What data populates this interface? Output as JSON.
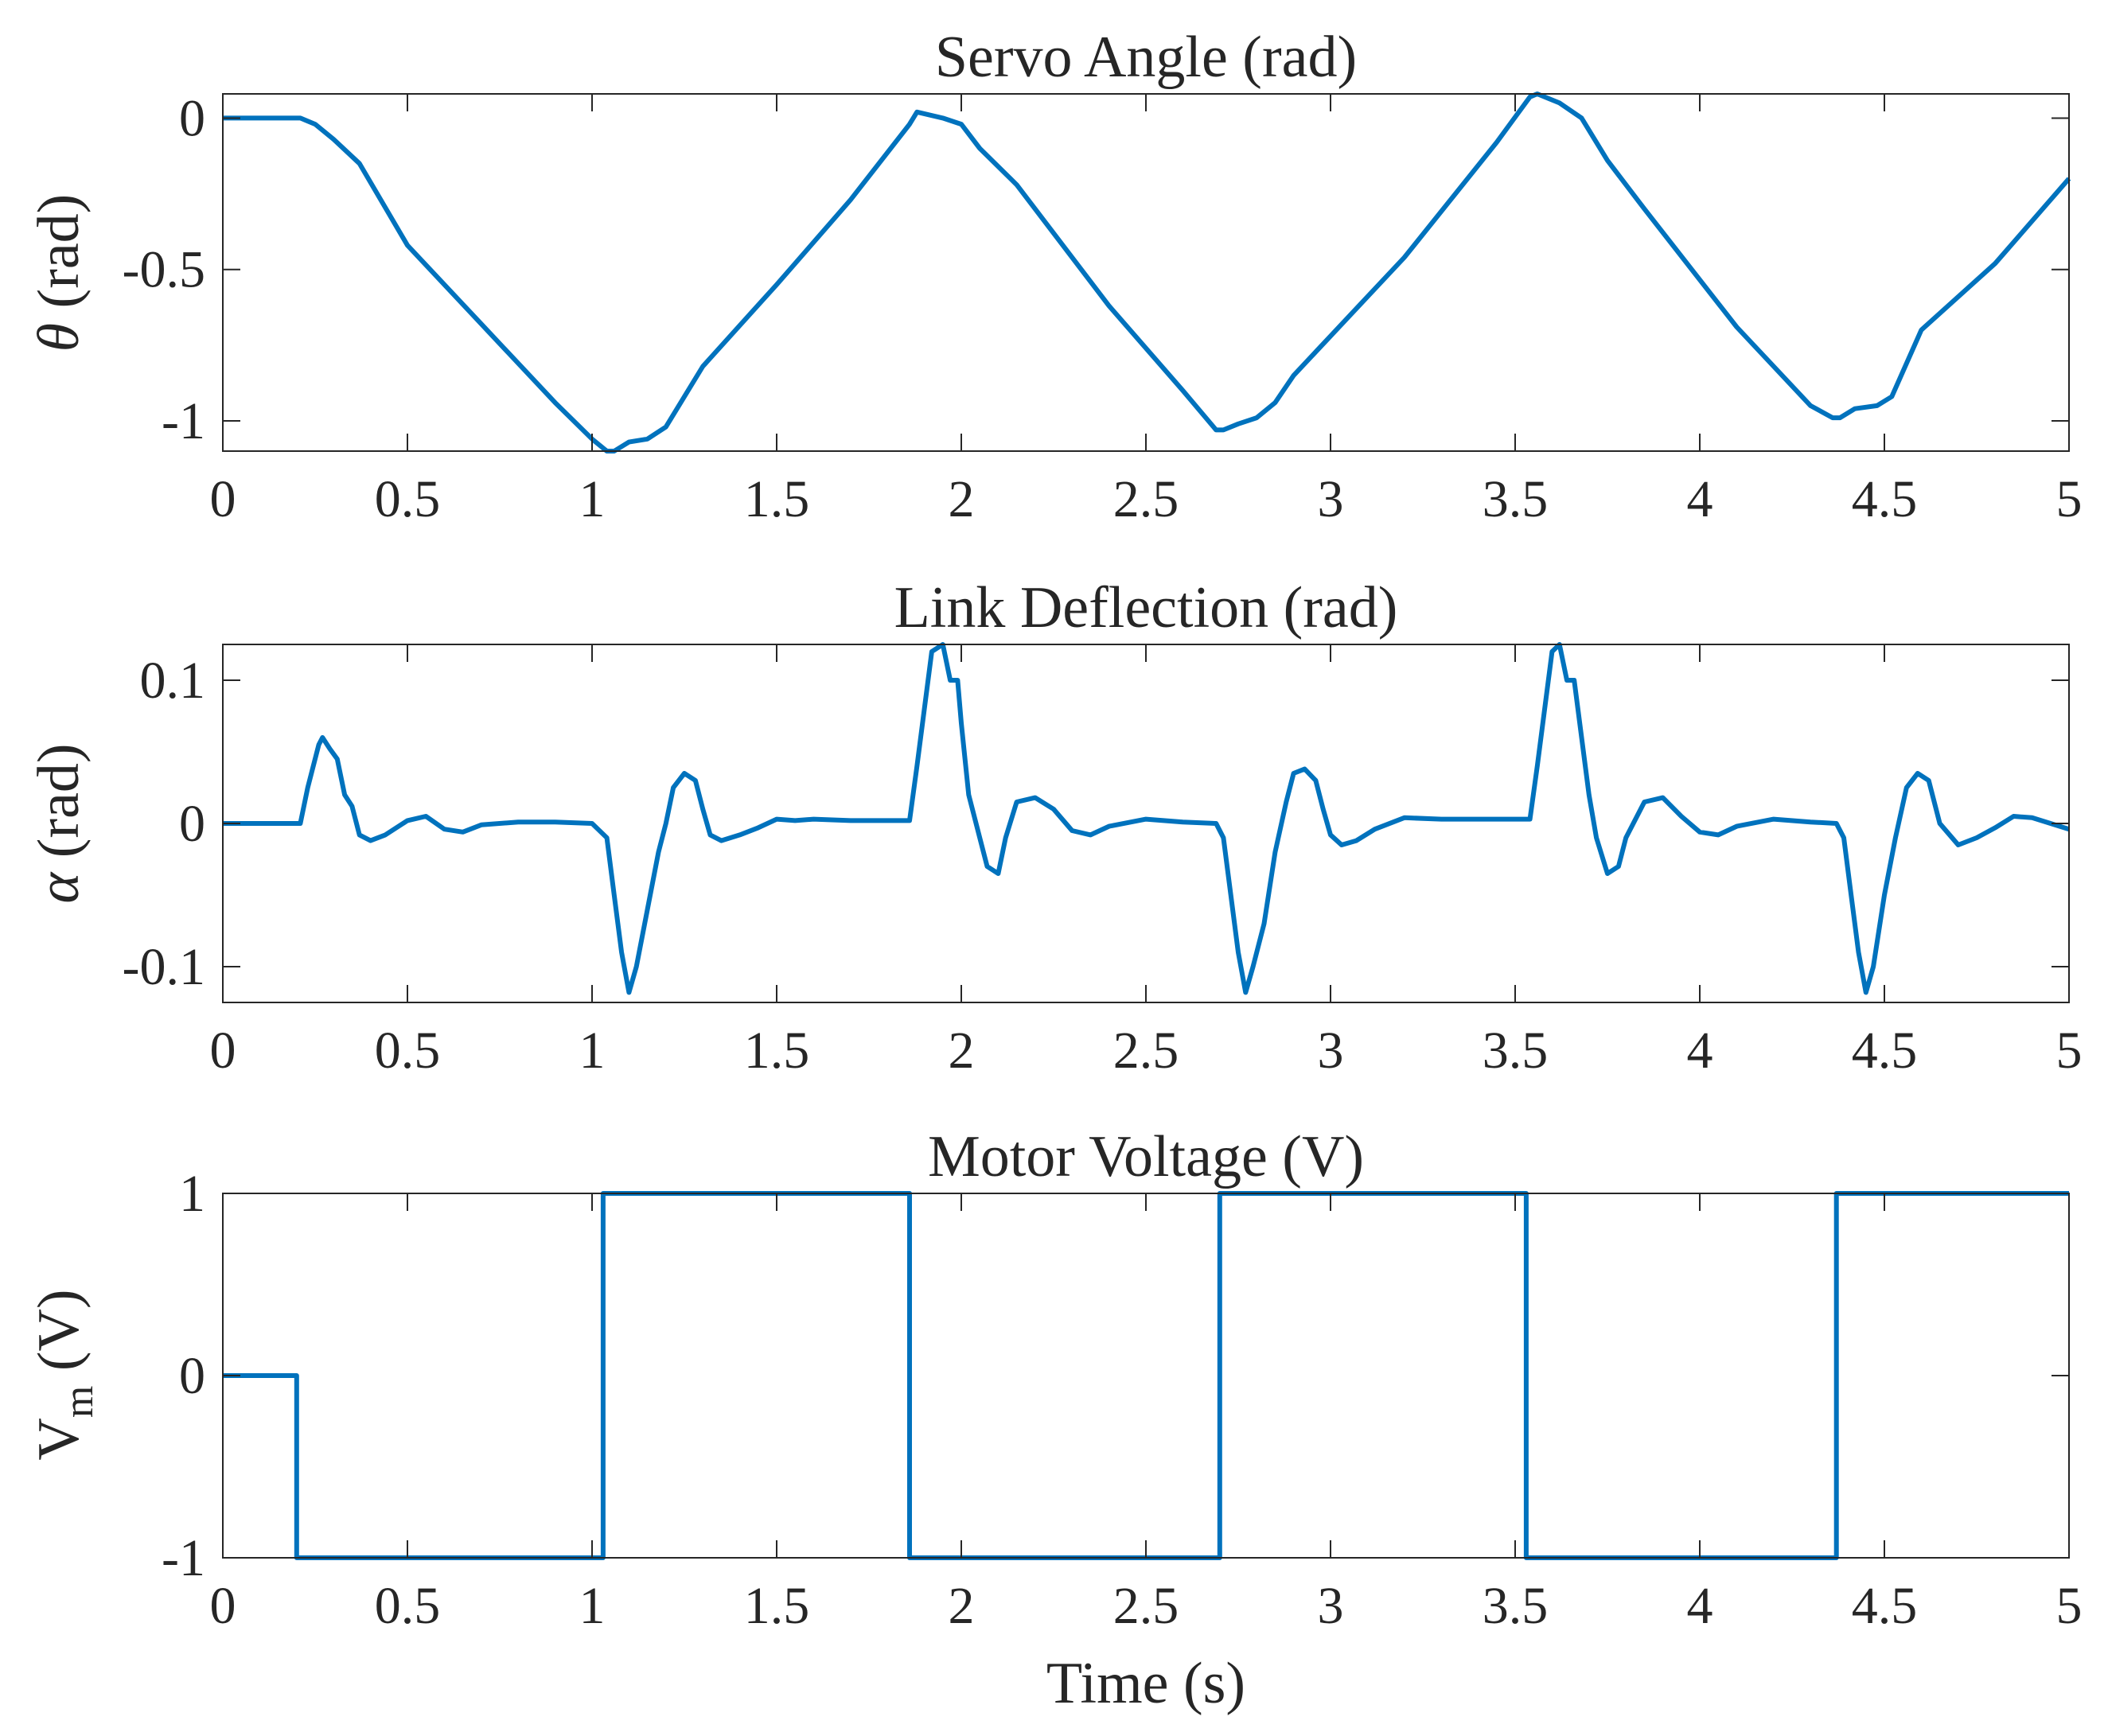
{
  "figure": {
    "line_color": "#0072BD",
    "axes_color": "#262626",
    "xlabel": "Time (s)"
  },
  "chart_data": [
    {
      "type": "line",
      "title": "Servo Angle (rad)",
      "ylabel_symbol": "θ",
      "ylabel_unit": " (rad)",
      "xlim": [
        0,
        5
      ],
      "ylim": [
        -1.1,
        0.08
      ],
      "xticks": [
        0,
        0.5,
        1,
        1.5,
        2,
        2.5,
        3,
        3.5,
        4,
        4.5,
        5
      ],
      "xtick_labels": [
        "0",
        "0.5",
        "1",
        "1.5",
        "2",
        "2.5",
        "3",
        "3.5",
        "4",
        "4.5",
        "5"
      ],
      "yticks": [
        -1,
        -0.5,
        0
      ],
      "ytick_labels": [
        "-1",
        "-0.5",
        "0"
      ],
      "series": [
        {
          "name": "theta",
          "x": [
            0,
            0.21,
            0.25,
            0.3,
            0.37,
            0.5,
            0.7,
            0.9,
            1.0,
            1.04,
            1.06,
            1.1,
            1.15,
            1.2,
            1.3,
            1.5,
            1.7,
            1.86,
            1.88,
            1.95,
            2.0,
            2.05,
            2.15,
            2.4,
            2.6,
            2.69,
            2.71,
            2.75,
            2.8,
            2.85,
            2.9,
            3.0,
            3.2,
            3.45,
            3.54,
            3.56,
            3.62,
            3.68,
            3.75,
            3.85,
            4.1,
            4.3,
            4.36,
            4.38,
            4.42,
            4.48,
            4.52,
            4.6,
            4.8,
            5.0
          ],
          "values": [
            0,
            0,
            -0.02,
            -0.07,
            -0.15,
            -0.42,
            -0.68,
            -0.94,
            -1.06,
            -1.1,
            -1.1,
            -1.07,
            -1.06,
            -1.02,
            -0.82,
            -0.55,
            -0.27,
            -0.02,
            0.02,
            0.0,
            -0.02,
            -0.1,
            -0.22,
            -0.62,
            -0.9,
            -1.03,
            -1.03,
            -1.01,
            -0.99,
            -0.94,
            -0.85,
            -0.72,
            -0.46,
            -0.08,
            0.07,
            0.08,
            0.05,
            0.0,
            -0.14,
            -0.3,
            -0.69,
            -0.95,
            -0.99,
            -0.99,
            -0.96,
            -0.95,
            -0.92,
            -0.7,
            -0.48,
            -0.2
          ]
        }
      ]
    },
    {
      "type": "line",
      "title": "Link Deflection (rad)",
      "ylabel_symbol": "α",
      "ylabel_unit": " (rad)",
      "xlim": [
        0,
        5
      ],
      "ylim": [
        -0.125,
        0.125
      ],
      "xticks": [
        0,
        0.5,
        1,
        1.5,
        2,
        2.5,
        3,
        3.5,
        4,
        4.5,
        5
      ],
      "xtick_labels": [
        "0",
        "0.5",
        "1",
        "1.5",
        "2",
        "2.5",
        "3",
        "3.5",
        "4",
        "4.5",
        "5"
      ],
      "yticks": [
        -0.1,
        0,
        0.1
      ],
      "ytick_labels": [
        "-0.1",
        "0",
        "0.1"
      ],
      "series": [
        {
          "name": "alpha",
          "x": [
            0,
            0.21,
            0.23,
            0.26,
            0.27,
            0.29,
            0.31,
            0.33,
            0.35,
            0.37,
            0.4,
            0.44,
            0.5,
            0.55,
            0.6,
            0.65,
            0.7,
            0.8,
            0.9,
            1.0,
            1.04,
            1.06,
            1.08,
            1.1,
            1.12,
            1.15,
            1.18,
            1.2,
            1.22,
            1.25,
            1.28,
            1.3,
            1.32,
            1.35,
            1.4,
            1.45,
            1.5,
            1.55,
            1.6,
            1.7,
            1.8,
            1.86,
            1.88,
            1.9,
            1.92,
            1.95,
            1.97,
            1.99,
            2.0,
            2.02,
            2.05,
            2.07,
            2.1,
            2.12,
            2.15,
            2.2,
            2.25,
            2.3,
            2.35,
            2.4,
            2.5,
            2.6,
            2.69,
            2.71,
            2.73,
            2.75,
            2.77,
            2.79,
            2.82,
            2.85,
            2.88,
            2.9,
            2.93,
            2.96,
            2.98,
            3.0,
            3.03,
            3.07,
            3.12,
            3.2,
            3.3,
            3.4,
            3.54,
            3.56,
            3.58,
            3.6,
            3.62,
            3.64,
            3.66,
            3.68,
            3.7,
            3.72,
            3.75,
            3.78,
            3.8,
            3.85,
            3.9,
            3.95,
            4.0,
            4.05,
            4.1,
            4.2,
            4.3,
            4.37,
            4.39,
            4.41,
            4.43,
            4.45,
            4.47,
            4.5,
            4.53,
            4.56,
            4.59,
            4.62,
            4.65,
            4.7,
            4.75,
            4.8,
            4.85,
            4.9,
            5.0
          ],
          "values": [
            0,
            0,
            0.025,
            0.055,
            0.06,
            0.052,
            0.045,
            0.02,
            0.012,
            -0.008,
            -0.012,
            -0.008,
            0.002,
            0.005,
            -0.004,
            -0.006,
            -0.001,
            0.001,
            0.001,
            0.0,
            -0.01,
            -0.05,
            -0.09,
            -0.118,
            -0.1,
            -0.06,
            -0.02,
            0.0,
            0.025,
            0.035,
            0.03,
            0.01,
            -0.008,
            -0.012,
            -0.008,
            -0.003,
            0.003,
            0.002,
            0.003,
            0.002,
            0.002,
            0.002,
            0.04,
            0.08,
            0.12,
            0.125,
            0.1,
            0.1,
            0.07,
            0.02,
            -0.01,
            -0.03,
            -0.035,
            -0.01,
            0.015,
            0.018,
            0.01,
            -0.005,
            -0.008,
            -0.002,
            0.003,
            0.001,
            0.0,
            -0.01,
            -0.05,
            -0.09,
            -0.118,
            -0.1,
            -0.07,
            -0.02,
            0.015,
            0.035,
            0.038,
            0.03,
            0.01,
            -0.008,
            -0.015,
            -0.012,
            -0.004,
            0.004,
            0.003,
            0.003,
            0.003,
            0.04,
            0.08,
            0.12,
            0.125,
            0.1,
            0.1,
            0.06,
            0.02,
            -0.01,
            -0.035,
            -0.03,
            -0.01,
            0.015,
            0.018,
            0.005,
            -0.006,
            -0.008,
            -0.002,
            0.003,
            0.001,
            0.0,
            -0.01,
            -0.05,
            -0.09,
            -0.118,
            -0.1,
            -0.05,
            -0.01,
            0.025,
            0.035,
            0.03,
            0.0,
            -0.015,
            -0.01,
            -0.003,
            0.005,
            0.004,
            -0.004
          ]
        }
      ]
    },
    {
      "type": "line",
      "title": "Motor Voltage (V)",
      "ylabel_main": "V",
      "ylabel_sub": "m",
      "ylabel_unit": " (V)",
      "xlim": [
        0,
        5
      ],
      "ylim": [
        -1,
        1
      ],
      "xticks": [
        0,
        0.5,
        1,
        1.5,
        2,
        2.5,
        3,
        3.5,
        4,
        4.5,
        5
      ],
      "xtick_labels": [
        "0",
        "0.5",
        "1",
        "1.5",
        "2",
        "2.5",
        "3",
        "3.5",
        "4",
        "4.5",
        "5"
      ],
      "yticks": [
        -1,
        0,
        1
      ],
      "ytick_labels": [
        "-1",
        "0",
        "1"
      ],
      "series": [
        {
          "name": "Vm",
          "x": [
            0,
            0.2,
            0.2,
            1.03,
            1.03,
            1.86,
            1.86,
            2.7,
            2.7,
            3.53,
            3.53,
            4.37,
            4.37,
            5.0
          ],
          "values": [
            0,
            0,
            -1,
            -1,
            1,
            1,
            -1,
            -1,
            1,
            1,
            -1,
            -1,
            1,
            1
          ]
        }
      ]
    }
  ]
}
